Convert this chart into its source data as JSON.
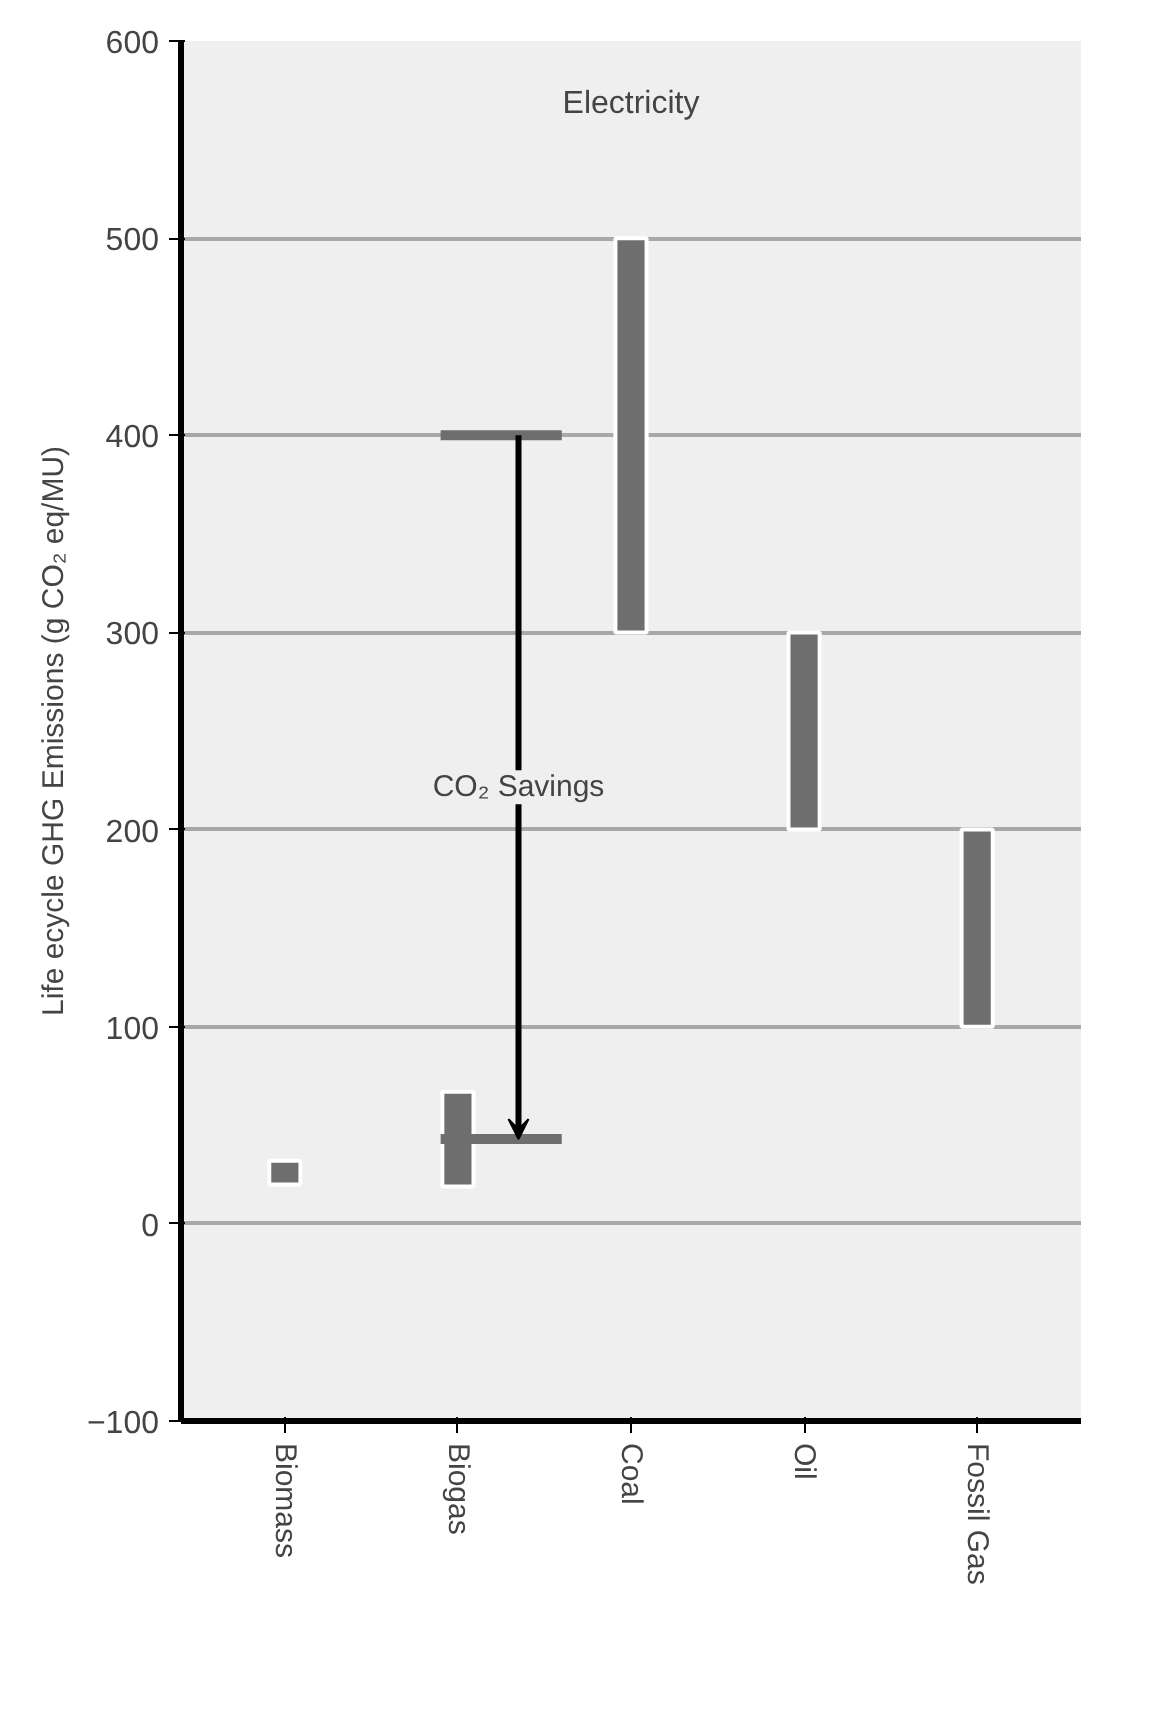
{
  "chart_data": {
    "type": "bar",
    "title": "Electricity",
    "ylabel": "Life ecycle GHG Emissions (g CO₂ eq/MU)",
    "categories": [
      "Biomass",
      "Biogas",
      "Coal",
      "Oil",
      "Fossil Gas"
    ],
    "base": [
      20,
      19,
      300,
      200,
      100
    ],
    "values": [
      12,
      48,
      200,
      100,
      100
    ],
    "color": "#6e6e6e",
    "ylim": [
      -100,
      600
    ],
    "yticks": [
      -100,
      0,
      100,
      200,
      300,
      400,
      500,
      600
    ],
    "grid": "y",
    "ref_lines": [
      {
        "axis": "y",
        "value": 400
      },
      {
        "axis": "y",
        "value": 43
      }
    ],
    "annotations": [
      "CO₂ Savings"
    ]
  }
}
